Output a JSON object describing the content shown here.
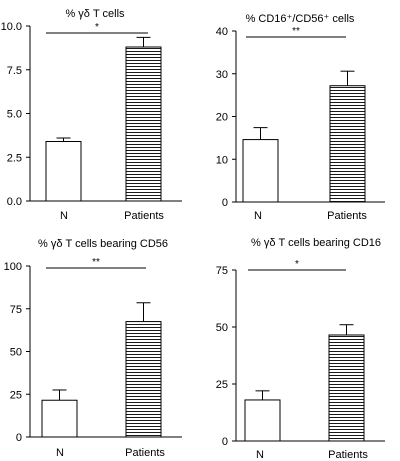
{
  "chart_data": [
    {
      "type": "bar",
      "title": "% γδ T cells",
      "categories": [
        "N",
        "Patients"
      ],
      "values": [
        3.4,
        8.8
      ],
      "errors": [
        0.2,
        0.55
      ],
      "ylim": [
        0,
        10
      ],
      "yticks": [
        "0.0",
        "2.5",
        "5.0",
        "7.5",
        "10.0"
      ],
      "significance": "*",
      "grid": false
    },
    {
      "type": "bar",
      "title": "% CD16⁺/CD56⁺ cells",
      "categories": [
        "N",
        "Patients"
      ],
      "values": [
        14.6,
        27.2
      ],
      "errors": [
        2.8,
        3.4
      ],
      "ylim": [
        0,
        40
      ],
      "yticks": [
        "0",
        "10",
        "20",
        "30",
        "40"
      ],
      "significance": "**",
      "grid": false
    },
    {
      "type": "bar",
      "title": "% γδ T cells bearing CD56",
      "categories": [
        "N",
        "Patients"
      ],
      "values": [
        21.5,
        67.5
      ],
      "errors": [
        6.0,
        11.0
      ],
      "ylim": [
        0,
        100
      ],
      "yticks": [
        "0",
        "25",
        "50",
        "75",
        "100"
      ],
      "significance": "**",
      "grid": false
    },
    {
      "type": "bar",
      "title": "% γδ T cells bearing CD16",
      "categories": [
        "N",
        "Patients"
      ],
      "values": [
        18.0,
        46.5
      ],
      "errors": [
        4.0,
        4.5
      ],
      "ylim": [
        0,
        75
      ],
      "yticks": [
        "0",
        "25",
        "50",
        "75"
      ],
      "significance": "*",
      "grid": false
    }
  ]
}
